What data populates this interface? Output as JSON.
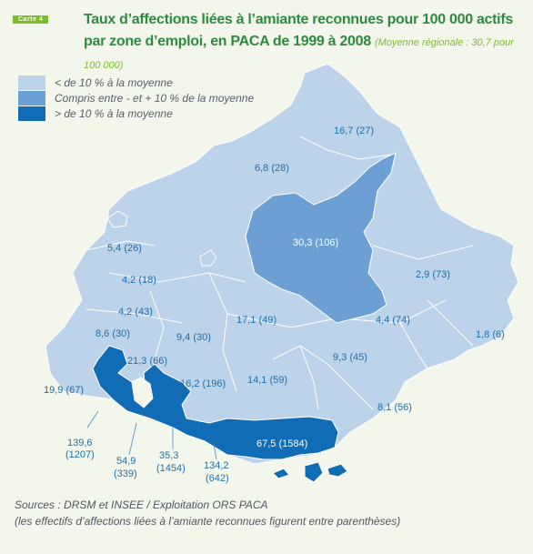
{
  "header": {
    "badge": "Carte 4",
    "title": "Taux d’affections liées à l’amiante reconnues pour 100 000 actifs par zone d’emploi, en PACA de 1999 à 2008",
    "subtitle": "(Moyenne régionale : 30,7 pour 100 000)"
  },
  "legend": [
    {
      "label": "< de 10 % à la moyenne",
      "color": "#bcd3ea"
    },
    {
      "label": "Compris entre - et + 10 % de la moyenne",
      "color": "#6c9fd3"
    },
    {
      "label": "> de 10 % à la moyenne",
      "color": "#0f6cb5"
    }
  ],
  "zones": [
    {
      "rate": "16,7",
      "count": "(27)"
    },
    {
      "rate": "6,8",
      "count": "(28)"
    },
    {
      "rate": "30,3",
      "count": "(106)"
    },
    {
      "rate": "5,4",
      "count": "(26)"
    },
    {
      "rate": "4,2",
      "count": "(18)"
    },
    {
      "rate": "4,2",
      "count": "(43)"
    },
    {
      "rate": "2,9",
      "count": "(73)"
    },
    {
      "rate": "8,6",
      "count": "(30)"
    },
    {
      "rate": "17,1",
      "count": "(49)"
    },
    {
      "rate": "4,4",
      "count": "(74)"
    },
    {
      "rate": "1,8",
      "count": "(6)"
    },
    {
      "rate": "9,4",
      "count": "(30)"
    },
    {
      "rate": "21,3",
      "count": "(66)"
    },
    {
      "rate": "9,3",
      "count": "(45)"
    },
    {
      "rate": "19,9",
      "count": "(67)"
    },
    {
      "rate": "16,2",
      "count": "(196)"
    },
    {
      "rate": "14,1",
      "count": "(59)"
    },
    {
      "rate": "8,1",
      "count": "(56)"
    },
    {
      "rate": "67,5",
      "count": "(1584)"
    },
    {
      "rate": "139,6",
      "count": "(1207)"
    },
    {
      "rate": "54,9",
      "count": "(339)"
    },
    {
      "rate": "35,3",
      "count": "(1454)"
    },
    {
      "rate": "134,2",
      "count": "(642)"
    }
  ],
  "sources": {
    "line1": "Sources : DRSM et INSEE / Exploitation ORS PACA",
    "line2": "(les effectifs d’affections liées à l’amiante reconnues figurent entre parenthèses)"
  }
}
